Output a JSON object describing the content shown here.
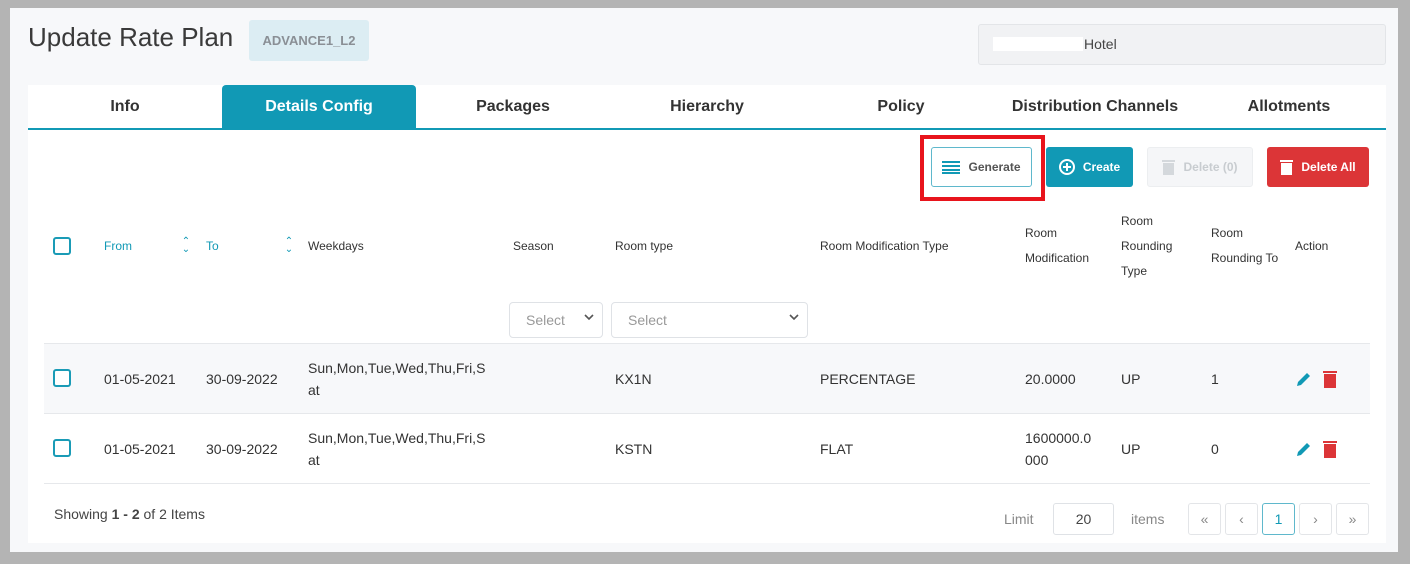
{
  "header": {
    "title": "Update Rate Plan",
    "code_badge": "ADVANCE1_L2",
    "hotel": "Hotel"
  },
  "tabs": [
    {
      "label": "Info"
    },
    {
      "label": "Details Config",
      "active": true
    },
    {
      "label": "Packages"
    },
    {
      "label": "Hierarchy"
    },
    {
      "label": "Policy"
    },
    {
      "label": "Distribution Channels"
    },
    {
      "label": "Allotments"
    }
  ],
  "toolbar": {
    "generate": "Generate",
    "create": "Create",
    "delete": "Delete (0)",
    "delete_all": "Delete All"
  },
  "columns": {
    "from": "From",
    "to": "To",
    "weekdays": "Weekdays",
    "season": "Season",
    "room_type": "Room type",
    "room_mod_type": "Room Modification Type",
    "room_mod": [
      "Room",
      "Modification"
    ],
    "room_rounding_type": [
      "Room",
      "Rounding",
      "Type"
    ],
    "room_rounding_to": [
      "Room",
      "Rounding To"
    ],
    "action": "Action"
  },
  "filters": {
    "season_placeholder": "Select",
    "room_type_placeholder": "Select"
  },
  "rows": [
    {
      "from": "01-05-2021",
      "to": "30-09-2022",
      "weekdays": [
        "Sun,Mon,Tue,Wed,Thu,Fri,S",
        "at"
      ],
      "season": "",
      "room_type": "KX1N",
      "mod_type": "PERCENTAGE",
      "mod": [
        "20.0000"
      ],
      "rounding_type": "UP",
      "rounding_to": "1"
    },
    {
      "from": "01-05-2021",
      "to": "30-09-2022",
      "weekdays": [
        "Sun,Mon,Tue,Wed,Thu,Fri,S",
        "at"
      ],
      "season": "",
      "room_type": "KSTN",
      "mod_type": "FLAT",
      "mod": [
        "1600000.0",
        "000"
      ],
      "rounding_type": "UP",
      "rounding_to": "0"
    }
  ],
  "footer": {
    "showing_prefix": "Showing ",
    "range": "1 - 2",
    "suffix": " of 2 Items",
    "limit_label": "Limit",
    "limit_value": "20",
    "items_label": "items",
    "current_page": "1",
    "first": "«",
    "prev": "‹",
    "next": "›",
    "last": "»"
  },
  "colors": {
    "accent": "#1199b5",
    "danger": "#dc3537",
    "highlight": "#e8141c"
  }
}
